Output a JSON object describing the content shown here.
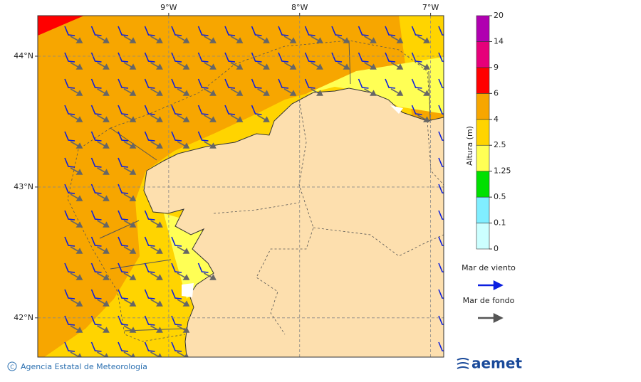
{
  "map": {
    "lon_ticks": [
      {
        "value": -9,
        "label": "9°W"
      },
      {
        "value": -8,
        "label": "8°W"
      },
      {
        "value": -7,
        "label": "7°W"
      }
    ],
    "lat_ticks": [
      {
        "value": 44,
        "label": "44°N"
      },
      {
        "value": 43,
        "label": "43°N"
      },
      {
        "value": 42,
        "label": "42°N"
      }
    ],
    "xlim": [
      -10,
      -6.9
    ],
    "ylim": [
      41.7,
      44.31
    ]
  },
  "colorbar": {
    "title": "Altura (m)",
    "levels": [
      0,
      0.1,
      0.5,
      1.25,
      2.5,
      4,
      6,
      9,
      14,
      20
    ],
    "colors": [
      "#ccffff",
      "#80eeff",
      "#00e000",
      "#ffff55",
      "#ffd400",
      "#f7a600",
      "#ff0000",
      "#e6007a",
      "#b000b0"
    ]
  },
  "legend": [
    {
      "label": "Mar de viento",
      "color": "#0b1fe0"
    },
    {
      "label": "Mar de fondo",
      "color": "#555555"
    }
  ],
  "footer": {
    "credit": "Agencia Estatal de Meteorología",
    "logo": "aemet"
  }
}
